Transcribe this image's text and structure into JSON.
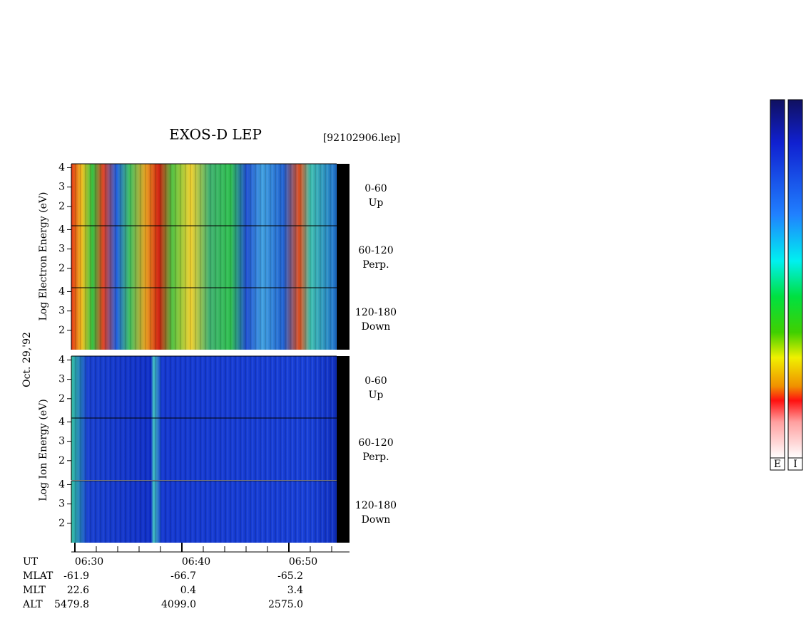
{
  "header": {
    "title": "EXOS-D LEP",
    "file": "[92102906.lep]"
  },
  "side_labels": {
    "date": "Oct. 29,'92",
    "electron": "Log  Electron  Energy  (eV)",
    "ion": "Log  Ion  Energy  (eV)"
  },
  "panels": [
    {
      "pitch": "0-60",
      "direction": "Up"
    },
    {
      "pitch": "60-120",
      "direction": "Perp."
    },
    {
      "pitch": "120-180",
      "direction": "Down"
    },
    {
      "pitch": "0-60",
      "direction": "Up"
    },
    {
      "pitch": "60-120",
      "direction": "Perp."
    },
    {
      "pitch": "120-180",
      "direction": "Down"
    }
  ],
  "y_axis": {
    "ylim": [
      1,
      4.2
    ],
    "yticks": [
      2,
      3,
      4
    ]
  },
  "x_axis": {
    "name": "UT",
    "ticks": [
      "06:30",
      "06:40",
      "06:50"
    ]
  },
  "orbit": [
    {
      "name": "MLAT",
      "values": [
        "-61.9",
        "-66.7",
        "-65.2"
      ]
    },
    {
      "name": "MLT",
      "values": [
        "22.6",
        "0.4",
        "3.4"
      ]
    },
    {
      "name": "ALT",
      "values": [
        "5479.8",
        "4099.0",
        "2575.0"
      ]
    }
  ],
  "colorbars": [
    "E",
    "I"
  ]
}
